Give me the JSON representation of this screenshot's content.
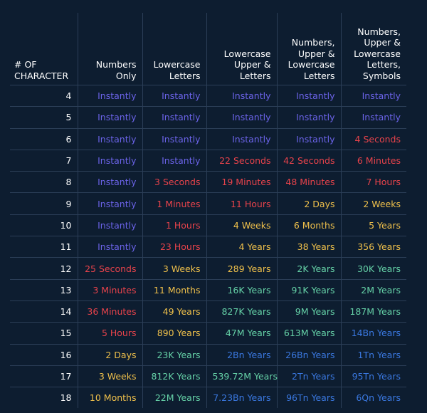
{
  "chart_data": {
    "type": "table",
    "columns": [
      "# OF CHARACTER",
      "Numbers Only",
      "Lowercase Letters",
      "Lowercase Upper & Letters",
      "Numbers, Upper & Lowercase Letters",
      "Numbers, Upper & Lowercase Letters, Symbols"
    ],
    "header_lines": [
      [
        "# OF",
        "CHARACTER"
      ],
      [
        "Numbers",
        "Only"
      ],
      [
        "Lowercase",
        "Letters"
      ],
      [
        "Lowercase",
        "Upper &",
        "Letters"
      ],
      [
        "Numbers,",
        "Upper &",
        "Lowercase",
        "Letters"
      ],
      [
        "Numbers,",
        "Upper &",
        "Lowercase",
        "Letters,",
        "Symbols"
      ]
    ],
    "rows": [
      [
        "4",
        "Instantly",
        "Instantly",
        "Instantly",
        "Instantly",
        "Instantly"
      ],
      [
        "5",
        "Instantly",
        "Instantly",
        "Instantly",
        "Instantly",
        "Instantly"
      ],
      [
        "6",
        "Instantly",
        "Instantly",
        "Instantly",
        "Instantly",
        "4 Seconds"
      ],
      [
        "7",
        "Instantly",
        "Instantly",
        "22 Seconds",
        "42 Seconds",
        "6 Minutes"
      ],
      [
        "8",
        "Instantly",
        "3 Seconds",
        "19 Minutes",
        "48 Minutes",
        "7 Hours"
      ],
      [
        "9",
        "Instantly",
        "1 Minutes",
        "11 Hours",
        "2 Days",
        "2 Weeks"
      ],
      [
        "10",
        "Instantly",
        "1 Hours",
        "4 Weeks",
        "6 Months",
        "5 Years"
      ],
      [
        "11",
        "Instantly",
        "23 Hours",
        "4 Years",
        "38 Years",
        "356 Years"
      ],
      [
        "12",
        "25 Seconds",
        "3 Weeks",
        "289 Years",
        "2K Years",
        "30K Years"
      ],
      [
        "13",
        "3 Minutes",
        "11 Months",
        "16K Years",
        "91K Years",
        "2M Years"
      ],
      [
        "14",
        "36 Minutes",
        "49 Years",
        "827K Years",
        "9M Years",
        "187M Years"
      ],
      [
        "15",
        "5 Hours",
        "890 Years",
        "47M Years",
        "613M Years",
        "14Bn Years"
      ],
      [
        "16",
        "2 Days",
        "23K Years",
        "2Bn Years",
        "26Bn Years",
        "1Tn Years"
      ],
      [
        "17",
        "3 Weeks",
        "812K Years",
        "539.72M Years",
        "2Tn Years",
        "95Tn Years"
      ],
      [
        "18",
        "10 Months",
        "22M Years",
        "7.23Bn Years",
        "96Tn Years",
        "6Qn Years"
      ]
    ],
    "colors": {
      "purple": "#6b63e8",
      "red": "#e8434b",
      "yellow": "#efc04b",
      "green": "#65d1a7",
      "blue": "#3a78e0",
      "background": "#0d1d30",
      "grid": "#2b3e57",
      "header_text": "#ffffff"
    },
    "cell_colors": [
      [
        "purple",
        "purple",
        "purple",
        "purple",
        "purple"
      ],
      [
        "purple",
        "purple",
        "purple",
        "purple",
        "purple"
      ],
      [
        "purple",
        "purple",
        "purple",
        "purple",
        "red"
      ],
      [
        "purple",
        "purple",
        "red",
        "red",
        "red"
      ],
      [
        "purple",
        "red",
        "red",
        "red",
        "red"
      ],
      [
        "purple",
        "red",
        "red",
        "yellow",
        "yellow"
      ],
      [
        "purple",
        "red",
        "yellow",
        "yellow",
        "yellow"
      ],
      [
        "purple",
        "red",
        "yellow",
        "yellow",
        "yellow"
      ],
      [
        "red",
        "yellow",
        "yellow",
        "green",
        "green"
      ],
      [
        "red",
        "yellow",
        "green",
        "green",
        "green"
      ],
      [
        "red",
        "yellow",
        "green",
        "green",
        "green"
      ],
      [
        "red",
        "yellow",
        "green",
        "green",
        "blue"
      ],
      [
        "yellow",
        "green",
        "blue",
        "blue",
        "blue"
      ],
      [
        "yellow",
        "green",
        "green",
        "blue",
        "blue"
      ],
      [
        "yellow",
        "green",
        "blue",
        "blue",
        "blue"
      ]
    ]
  }
}
